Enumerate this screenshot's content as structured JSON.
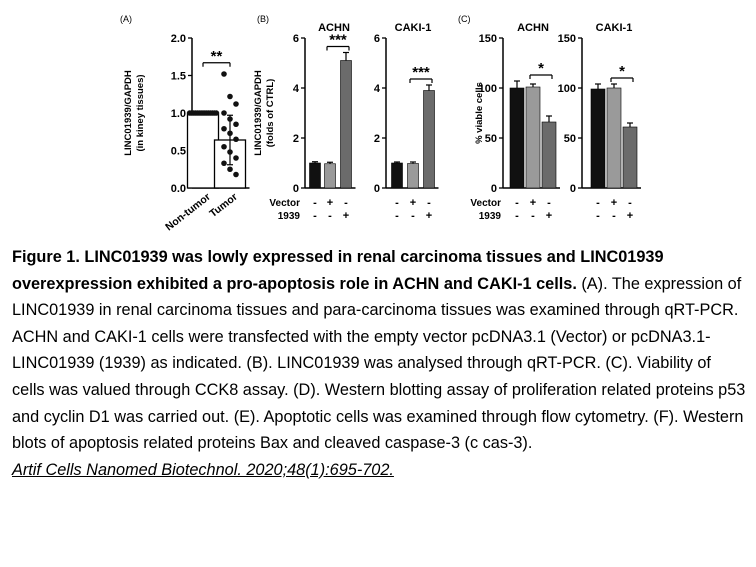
{
  "chart_data": [
    {
      "panel": "(A)",
      "type": "bar",
      "categories": [
        "Non-tumor",
        "Tumor"
      ],
      "values": [
        1.0,
        0.64
      ],
      "errors": [
        0.01,
        0.33
      ],
      "points": [
        [
          1.0,
          1.0,
          1.0,
          1.0,
          1.0,
          1.0,
          1.0,
          1.0,
          1.0,
          1.0,
          1.0,
          1.0,
          1.0,
          1.0,
          1.0
        ],
        [
          1.52,
          1.22,
          1.12,
          1.0,
          0.92,
          0.85,
          0.79,
          0.73,
          0.65,
          0.55,
          0.48,
          0.4,
          0.33,
          0.25,
          0.18
        ]
      ],
      "ylabel": "LINC01939/GAPDH\n(in kiney tissues)",
      "ylim": [
        0,
        2.0
      ],
      "yticks": [
        0.0,
        0.5,
        1.0,
        1.5,
        2.0
      ],
      "yticklabels": [
        "0.0",
        "0.5",
        "1.0",
        "1.5",
        "2.0"
      ],
      "significance": "**"
    },
    {
      "panel": "(B)",
      "type": "bar",
      "title": "ACHN",
      "values": [
        1.0,
        0.97,
        5.1
      ],
      "errors": [
        0.05,
        0.06,
        0.32
      ],
      "colors": [
        "#111111",
        "#9a9a9a",
        "#6b6b6b"
      ],
      "ylabel": "LINC01939/GAPDH\n(folds of CTRL)",
      "ylim": [
        0,
        6
      ],
      "yticks": [
        0,
        2,
        4,
        6
      ],
      "yticklabels": [
        "0",
        "2",
        "4",
        "6"
      ],
      "significance": "***"
    },
    {
      "panel": "",
      "type": "bar",
      "title": "CAKI-1",
      "values": [
        1.0,
        0.98,
        3.9
      ],
      "errors": [
        0.04,
        0.06,
        0.22
      ],
      "colors": [
        "#111111",
        "#9a9a9a",
        "#6b6b6b"
      ],
      "ylim": [
        0,
        6
      ],
      "yticks": [
        0,
        2,
        4,
        6
      ],
      "yticklabels": [
        "0",
        "2",
        "4",
        "6"
      ],
      "significance": "***"
    },
    {
      "panel": "(C)",
      "type": "bar",
      "title": "ACHN",
      "values": [
        100,
        101,
        66
      ],
      "errors": [
        7,
        3,
        6
      ],
      "colors": [
        "#111111",
        "#9a9a9a",
        "#6b6b6b"
      ],
      "ylabel": "% viable cells",
      "ylim": [
        0,
        150
      ],
      "yticks": [
        0,
        50,
        100,
        150
      ],
      "yticklabels": [
        "0",
        "50",
        "100",
        "150"
      ],
      "significance": "*"
    },
    {
      "panel": "",
      "type": "bar",
      "title": "CAKI-1",
      "values": [
        99,
        100,
        61
      ],
      "errors": [
        5,
        4,
        4
      ],
      "colors": [
        "#111111",
        "#9a9a9a",
        "#6b6b6b"
      ],
      "ylim": [
        0,
        150
      ],
      "yticks": [
        0,
        50,
        100,
        150
      ],
      "yticklabels": [
        "0",
        "50",
        "100",
        "150"
      ],
      "significance": "*"
    }
  ],
  "treatment_table": {
    "row_labels": [
      "Vector",
      "1939"
    ],
    "rows": [
      [
        "-",
        "+",
        "-"
      ],
      [
        "-",
        "-",
        "+"
      ]
    ]
  },
  "caption": {
    "bold_text": "Figure 1. LINC01939 was lowly expressed in renal carcinoma tissues and LINC01939 overexpression exhibited a pro-apoptosis role in ACHN and CAKI-1 cells.",
    "body_text": " (A). The expression of LINC01939 in renal carcinoma tissues and para-carcinoma tissues was examined through qRT-PCR. ACHN and CAKI-1 cells were transfected with the empty vector pcDNA3.1 (Vector) or pcDNA3.1-LINC01939 (1939) as indicated. (B). LINC01939 was analysed through qRT-PCR. (C). Viability of cells was valued through CCK8 assay. (D). Western blotting assay of proliferation related proteins p53 and cyclin D1 was carried out. (E). Apoptotic cells was examined through flow cytometry. (F). Western blots of apoptosis related proteins Bax and cleaved caspase-3 (c cas-3).",
    "citation": "Artif Cells Nanomed Biotechnol. 2020;48(1):695-702."
  }
}
